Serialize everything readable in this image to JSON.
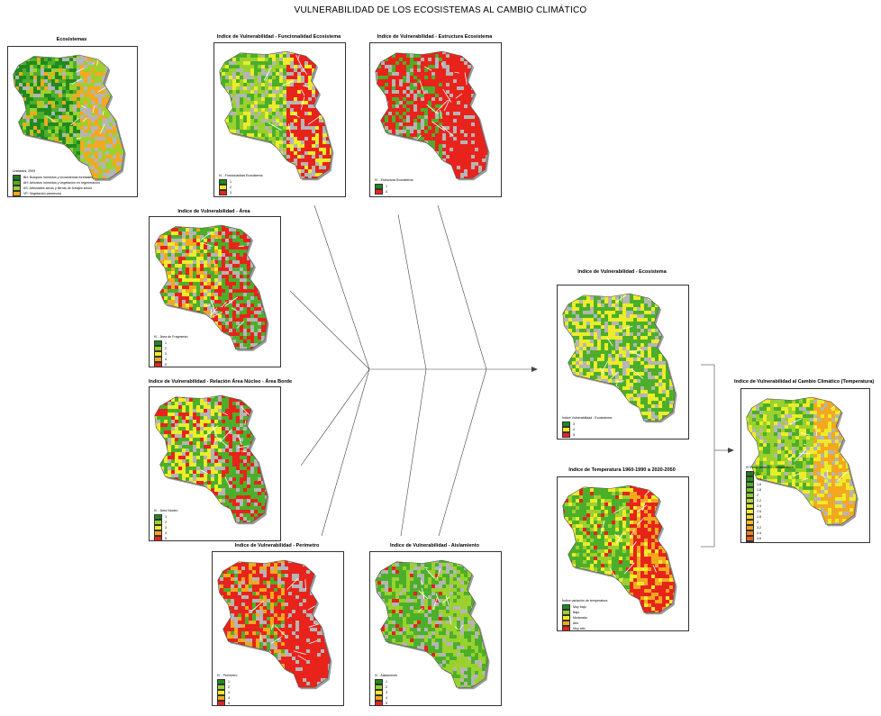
{
  "title": "VULNERABILIDAD DE LOS ECOSISTEMAS AL CAMBIO CLIMÁTICO",
  "colors": {
    "dark_green": "#1f8a1f",
    "green": "#4caf2a",
    "light_green": "#9bd12e",
    "yellow": "#ecec2a",
    "orange": "#f3a81f",
    "red": "#e8231b",
    "gray": "#b5b5b5",
    "road": "#ffffff"
  },
  "panels": {
    "ecosistemas": {
      "title": "Ecosistemas",
      "legend_title": "Unidades, 2009",
      "legend": [
        {
          "label": "BH: Bosques húmedos y ecosistemas forestales",
          "color": "#1f7a1f"
        },
        {
          "label": "AH: Arbustos húmedos y vegetación en regeneración",
          "color": "#4caf2a"
        },
        {
          "label": "AS: Arbustales secos y tierras de forrajes secos",
          "color": "#9bd12e"
        },
        {
          "label": "VP: Vegetación paramuna",
          "color": "#f3a81f"
        }
      ]
    },
    "funcionalidad": {
      "title": "Indice de Vulnerabilidad - Funcionalidad Ecosistema",
      "legend_title": "IV - Funcionalidad Ecosistema",
      "legend": [
        {
          "label": "1",
          "color": "#1f8a1f"
        },
        {
          "label": "2",
          "color": "#ecec2a"
        },
        {
          "label": "3",
          "color": "#e8231b"
        }
      ]
    },
    "estructura": {
      "title": "Indice de Vulnerabilidad - Estructura Ecosistema",
      "legend_title": "IV - Estructura Ecosistema",
      "legend": [
        {
          "label": "1",
          "color": "#1f8a1f"
        },
        {
          "label": "4",
          "color": "#e8231b"
        }
      ]
    },
    "area": {
      "title": "Indice de Vulnerabilidad - Área",
      "legend_title": "IV - Área de Fragmento",
      "legend": [
        {
          "label": "1",
          "color": "#1f8a1f"
        },
        {
          "label": "2",
          "color": "#9bd12e"
        },
        {
          "label": "3",
          "color": "#ecec2a"
        },
        {
          "label": "4",
          "color": "#f3a81f"
        },
        {
          "label": "5",
          "color": "#e8231b"
        }
      ]
    },
    "relacion": {
      "title": "Indice de Vulnerabilidad - Relación Área Núcleo - Área Borde",
      "legend_title": "IV - Área Núcleo",
      "legend": [
        {
          "label": "1",
          "color": "#1f8a1f"
        },
        {
          "label": "2",
          "color": "#9bd12e"
        },
        {
          "label": "3",
          "color": "#ecec2a"
        },
        {
          "label": "4",
          "color": "#f3a81f"
        },
        {
          "label": "5",
          "color": "#e8231b"
        }
      ]
    },
    "perimetro": {
      "title": "Indice de Vulnerabilidad - Perímetro",
      "legend_title": "IV - Perímetro",
      "legend": [
        {
          "label": "1",
          "color": "#1f8a1f"
        },
        {
          "label": "2",
          "color": "#9bd12e"
        },
        {
          "label": "3",
          "color": "#ecec2a"
        },
        {
          "label": "4",
          "color": "#f3a81f"
        },
        {
          "label": "5",
          "color": "#e8231b"
        }
      ]
    },
    "aislamiento": {
      "title": "Indice de Vulnerabilidad - Aislamiento",
      "legend_title": "IV - Aislamiento",
      "legend": [
        {
          "label": "1",
          "color": "#1f8a1f"
        },
        {
          "label": "2",
          "color": "#9bd12e"
        },
        {
          "label": "3",
          "color": "#ecec2a"
        },
        {
          "label": "4",
          "color": "#f3a81f"
        },
        {
          "label": "5",
          "color": "#e8231b"
        }
      ]
    },
    "ecosistema_total": {
      "title": "Indice de Vulnerabilidad - Ecosistema",
      "legend_title": "Índice Vulnerabilidad - Ecosistema",
      "legend": [
        {
          "label": "3",
          "color": "#1f8a1f"
        },
        {
          "label": "4",
          "color": "#ecec2a"
        },
        {
          "label": "5",
          "color": "#e8231b"
        }
      ]
    },
    "temperatura": {
      "title": "Indice de Temperatura 1960-1990 a 2020-2050",
      "legend_title": "Índice variación de temperatura",
      "legend": [
        {
          "label": "Muy bajo",
          "color": "#1f8a1f"
        },
        {
          "label": "Bajo",
          "color": "#9bd12e"
        },
        {
          "label": "Moderado",
          "color": "#ecec2a"
        },
        {
          "label": "Alto",
          "color": "#f3a81f"
        },
        {
          "label": "Muy alto",
          "color": "#e8231b"
        }
      ]
    },
    "cambio_climatico": {
      "title": "Indice de Vulnerabilidad al Cambio Climático (Temperatura)",
      "legend_title": "IV Ecosistema CC - Temperatura",
      "legend": [
        {
          "label": "1.2",
          "color": "#1f7a1f"
        },
        {
          "label": "1.4",
          "color": "#2e8f22"
        },
        {
          "label": "1.6",
          "color": "#4caf2a"
        },
        {
          "label": "1.8",
          "color": "#6bbf2c"
        },
        {
          "label": "2",
          "color": "#8ccb2e"
        },
        {
          "label": "2.2",
          "color": "#b3d92e"
        },
        {
          "label": "2.4",
          "color": "#dbe52d"
        },
        {
          "label": "2.6",
          "color": "#f2ea2a"
        },
        {
          "label": "2.8",
          "color": "#f5d228"
        },
        {
          "label": "3",
          "color": "#f5b825"
        },
        {
          "label": "3.2",
          "color": "#f39d22"
        },
        {
          "label": "3.4",
          "color": "#ef7d20"
        },
        {
          "label": "3.6",
          "color": "#eb5c1e"
        },
        {
          "label": "3.8",
          "color": "#e83c1c"
        },
        {
          "label": "4",
          "color": "#e3211a"
        }
      ]
    }
  }
}
